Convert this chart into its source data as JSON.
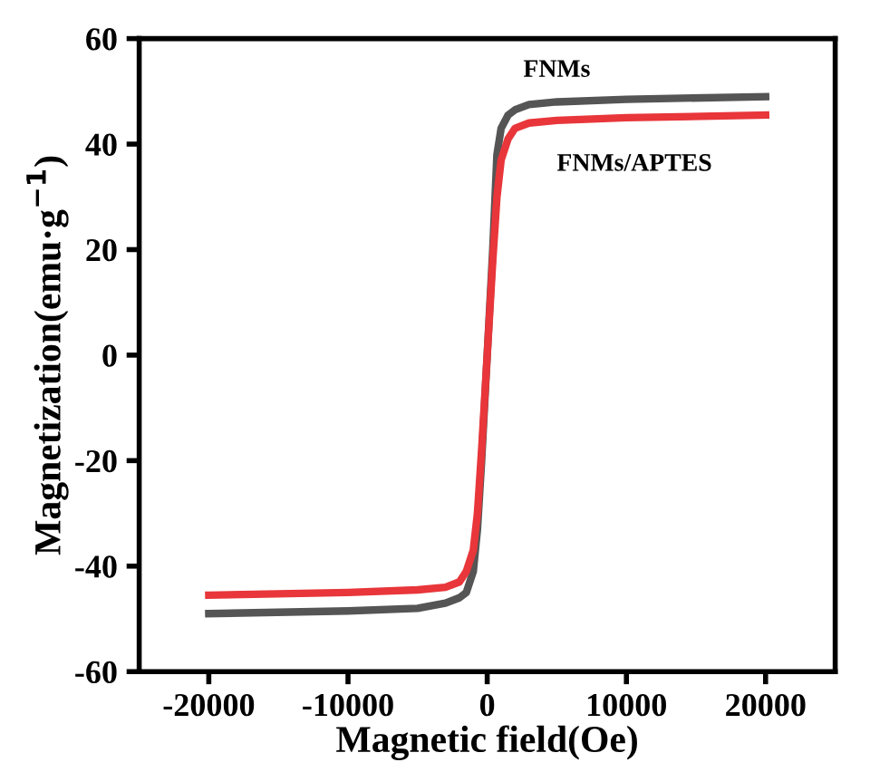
{
  "chart_data": {
    "type": "line",
    "xlabel": "Magnetic field(Oe)",
    "ylabel": "Magnetization(emu·g$^{−1}$)",
    "xlim": [
      -25000,
      25000
    ],
    "xticks": [
      -20000,
      -10000,
      0,
      10000,
      20000
    ],
    "ylim": [
      -60,
      60
    ],
    "yticks": [
      -60,
      -40,
      -20,
      0,
      20,
      40,
      60
    ],
    "grid": false,
    "legend": false,
    "marker": "none",
    "line_style": "solid",
    "series": [
      {
        "name": "FNMs",
        "color": "#555555",
        "x": [
          -20000,
          -10000,
          -5000,
          -3000,
          -2000,
          -1500,
          -1000,
          -700,
          -400,
          0,
          400,
          700,
          1000,
          1500,
          2000,
          3000,
          5000,
          10000,
          20000
        ],
        "values": [
          -49,
          -48.5,
          -48,
          -47,
          -46,
          -45,
          -41,
          -33,
          -20,
          0,
          20,
          38,
          43,
          45.5,
          46.5,
          47.5,
          48,
          48.5,
          49
        ]
      },
      {
        "name": "FNMs/APTES",
        "color": "#e8363a",
        "x": [
          -20000,
          -10000,
          -5000,
          -3000,
          -2000,
          -1500,
          -1000,
          -700,
          -400,
          0,
          400,
          700,
          1000,
          1500,
          2000,
          3000,
          5000,
          10000,
          20000
        ],
        "values": [
          -45.5,
          -45,
          -44.5,
          -44,
          -43,
          -41,
          -37,
          -30,
          -18,
          0,
          18,
          30,
          37,
          41,
          43,
          44,
          44.5,
          45,
          45.5
        ]
      }
    ]
  }
}
